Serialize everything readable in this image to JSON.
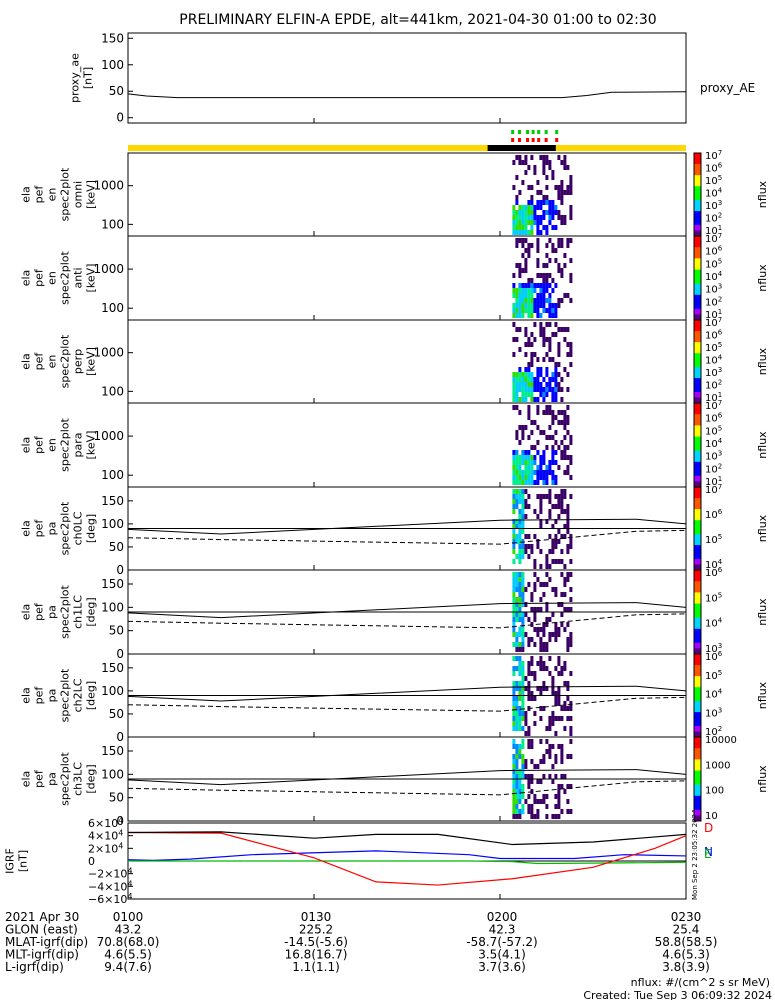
{
  "title": "PRELIMINARY ELFIN-A EPDE, alt=441km, 2021-04-30 01:00 to 02:30",
  "chart_data": [
    {
      "type": "line",
      "panel": "proxy_ae",
      "ylabel": [
        "proxy_ae",
        "[nT]"
      ],
      "yticks": [
        "150",
        "100",
        "50",
        "0"
      ],
      "ylim": [
        -10,
        160
      ],
      "series": [
        {
          "name": "proxy_AE",
          "x": [
            0,
            3,
            8,
            60,
            70,
            74,
            78,
            90
          ],
          "values": [
            45,
            41,
            38,
            38,
            38,
            42,
            48,
            49
          ]
        }
      ]
    },
    {
      "type": "heatmap",
      "panel": "omni",
      "ylabel": [
        "ela",
        "pef",
        "en",
        "spec2plot",
        "omni",
        "[keV]"
      ],
      "yticks": [
        "1000",
        "100"
      ],
      "colorbar_label": "nflux",
      "colorbar_ticks": [
        "10^7",
        "10^6",
        "10^5",
        "10^4",
        "10^3",
        "10^2",
        "10^1"
      ],
      "data_window_minutes": [
        62,
        71.5
      ]
    },
    {
      "type": "heatmap",
      "panel": "anti",
      "ylabel": [
        "ela",
        "pef",
        "en",
        "spec2plot",
        "anti",
        "[keV]"
      ],
      "yticks": [
        "1000",
        "100"
      ],
      "colorbar_label": "nflux",
      "colorbar_ticks": [
        "10^7",
        "10^6",
        "10^5",
        "10^4",
        "10^3",
        "10^2",
        "10^1"
      ]
    },
    {
      "type": "heatmap",
      "panel": "perp",
      "ylabel": [
        "ela",
        "pef",
        "en",
        "spec2plot",
        "perp",
        "[keV]"
      ],
      "yticks": [
        "1000",
        "100"
      ],
      "colorbar_label": "nflux",
      "colorbar_ticks": [
        "10^7",
        "10^6",
        "10^5",
        "10^4",
        "10^3",
        "10^2",
        "10^1"
      ]
    },
    {
      "type": "heatmap",
      "panel": "para",
      "ylabel": [
        "ela",
        "pef",
        "en",
        "spec2plot",
        "para",
        "[keV]"
      ],
      "yticks": [
        "1000",
        "100"
      ],
      "colorbar_label": "nflux",
      "colorbar_ticks": [
        "10^7",
        "10^6",
        "10^5",
        "10^4",
        "10^3",
        "10^2",
        "10^1"
      ]
    },
    {
      "type": "heatmap",
      "panel": "ch0LC",
      "ylabel": [
        "ela",
        "pef",
        "pa",
        "spec2plot",
        "ch0LC",
        "[deg]"
      ],
      "yticks": [
        "150",
        "100",
        "50",
        "0"
      ],
      "colorbar_label": "nflux",
      "colorbar_ticks": [
        "10^7",
        "10^6",
        "10^5",
        "10^4"
      ]
    },
    {
      "type": "heatmap",
      "panel": "ch1LC",
      "ylabel": [
        "ela",
        "pef",
        "pa",
        "spec2plot",
        "ch1LC",
        "[deg]"
      ],
      "yticks": [
        "150",
        "100",
        "50",
        "0"
      ],
      "colorbar_label": "nflux",
      "colorbar_ticks": [
        "10^6",
        "10^5",
        "10^4",
        "10^3"
      ]
    },
    {
      "type": "heatmap",
      "panel": "ch2LC",
      "ylabel": [
        "ela",
        "pef",
        "pa",
        "spec2plot",
        "ch2LC",
        "[deg]"
      ],
      "yticks": [
        "150",
        "100",
        "50",
        "0"
      ],
      "colorbar_label": "nflux",
      "colorbar_ticks": [
        "10^6",
        "10^5",
        "10^4",
        "10^3",
        "10^2"
      ]
    },
    {
      "type": "heatmap",
      "panel": "ch3LC",
      "ylabel": [
        "ela",
        "pef",
        "pa",
        "spec2plot",
        "ch3LC",
        "[deg]"
      ],
      "yticks": [
        "150",
        "100",
        "50",
        "0"
      ],
      "colorbar_label": "nflux",
      "colorbar_ticks": [
        "10000",
        "1000",
        "100",
        "10"
      ]
    },
    {
      "type": "line",
      "panel": "igrf",
      "ylabel": [
        "IGRF",
        "[nT]"
      ],
      "yticks": [
        "6×10^4",
        "4×10^4",
        "2×10^4",
        "0",
        "−2×10^4",
        "−4×10^4",
        "−6×10^4"
      ],
      "ylim": [
        -60000,
        60000
      ],
      "series": [
        {
          "name": "N",
          "color": "#0000ff",
          "x": [
            0,
            4,
            10,
            20,
            40,
            55,
            60,
            66,
            72,
            80,
            90
          ],
          "values": [
            2000,
            1000,
            3000,
            10000,
            16000,
            10000,
            4000,
            4000,
            4000,
            10000,
            8000
          ]
        },
        {
          "name": "E",
          "color": "#00bb00",
          "x": [
            0,
            10,
            20,
            40,
            55,
            62,
            66,
            80,
            90
          ],
          "values": [
            0,
            0,
            0,
            0,
            0,
            -1000,
            -4000,
            -3000,
            -2000
          ]
        },
        {
          "name": "D",
          "color": "#ff0000",
          "x": [
            0,
            15,
            30,
            40,
            50,
            62,
            75,
            85,
            90
          ],
          "values": [
            45000,
            44000,
            5000,
            -33000,
            -38000,
            -28000,
            -10000,
            20000,
            40000
          ]
        },
        {
          "name": "|B|",
          "color": "#000000",
          "x": [
            0,
            15,
            30,
            40,
            50,
            62,
            75,
            85,
            90
          ],
          "values": [
            45000,
            46000,
            36000,
            42000,
            42000,
            26000,
            30000,
            38000,
            42000
          ]
        }
      ]
    }
  ],
  "footer": {
    "rows": [
      {
        "label": "2021 Apr 30",
        "values": [
          "0100",
          "0130",
          "0200",
          "0230"
        ]
      },
      {
        "label": "GLON (east)",
        "values": [
          "43.2",
          "225.2",
          "42.3",
          "25.4"
        ]
      },
      {
        "label": "MLAT-igrf(dip)",
        "values": [
          "70.8(68.0)",
          "-14.5(-5.6)",
          "-58.7(-57.2)",
          "58.8(58.5)"
        ]
      },
      {
        "label": "MLT-igrf(dip)",
        "values": [
          "4.6(5.5)",
          "16.8(16.7)",
          "3.5(4.1)",
          "4.6(5.3)"
        ]
      },
      {
        "label": "L-igrf(dip)",
        "values": [
          "9.4(7.6)",
          "1.1(1.1)",
          "3.7(3.6)",
          "3.8(3.9)"
        ]
      }
    ],
    "units_note": "nflux: #/(cm^2 s sr MeV)",
    "created": "Created: Tue Sep  3 06:09:32 2024",
    "side_stamp": "Mon Sep  2 23:05:32 2024"
  }
}
